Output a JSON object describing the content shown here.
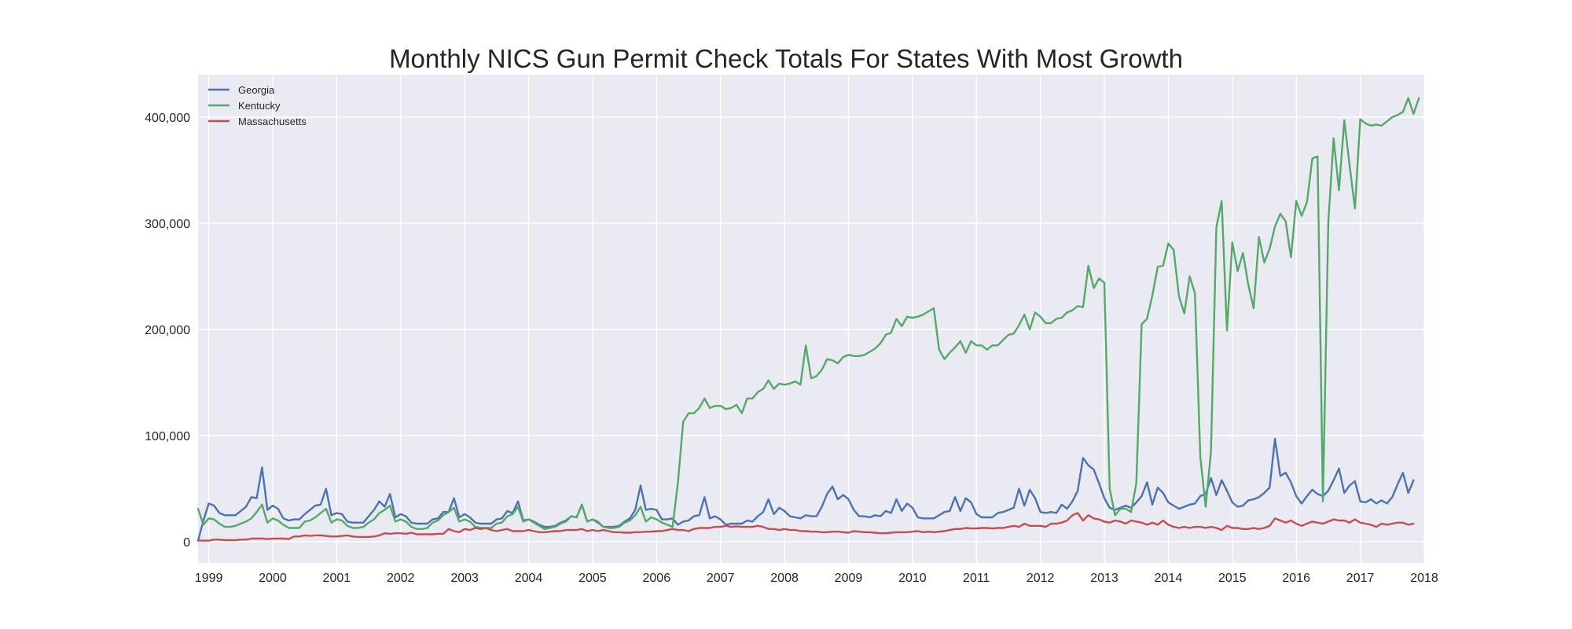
{
  "chart_data": {
    "type": "line",
    "title": "Monthly NICS Gun Permit Check Totals For States With Most Growth",
    "xlabel": "",
    "ylabel": "",
    "x_start": "1998-11",
    "x_end": "2018-01",
    "x_range": [
      "1998-11",
      "2018-01"
    ],
    "x_ticks": [
      "1999",
      "2000",
      "2001",
      "2002",
      "2003",
      "2004",
      "2005",
      "2006",
      "2007",
      "2008",
      "2009",
      "2010",
      "2011",
      "2012",
      "2013",
      "2014",
      "2015",
      "2016",
      "2017",
      "2018"
    ],
    "ylim": [
      -20000,
      440000
    ],
    "y_ticks": [
      0,
      100000,
      200000,
      300000,
      400000
    ],
    "y_tick_labels": [
      "0",
      "100,000",
      "200,000",
      "300,000",
      "400,000"
    ],
    "grid": true,
    "background": "#eaeaf2",
    "legend_position": "top-left",
    "series": [
      {
        "name": "Georgia",
        "color": "#4c72b0",
        "values": [
          1000,
          20000,
          36000,
          34000,
          27000,
          25000,
          25000,
          25000,
          29000,
          33000,
          42000,
          41000,
          70000,
          30000,
          34000,
          31000,
          22000,
          20000,
          21000,
          21000,
          26000,
          30000,
          34000,
          35000,
          50000,
          25000,
          27000,
          26000,
          19000,
          18000,
          18000,
          18000,
          24000,
          30000,
          38000,
          33000,
          45000,
          23000,
          26000,
          24000,
          18000,
          17000,
          17000,
          17000,
          21000,
          22000,
          28000,
          28000,
          41000,
          23000,
          26000,
          23000,
          18000,
          17000,
          17000,
          17000,
          21000,
          22000,
          29000,
          27000,
          38000,
          20000,
          21000,
          19000,
          16000,
          14000,
          14000,
          15000,
          18000,
          20000,
          24000,
          23000,
          35000,
          19000,
          21000,
          18000,
          14000,
          14000,
          14000,
          15000,
          19000,
          22000,
          30000,
          53000,
          30000,
          31000,
          30000,
          21000,
          21000,
          22000,
          16000,
          19000,
          20000,
          24000,
          25000,
          42000,
          22000,
          24000,
          21000,
          16000,
          17000,
          17000,
          17000,
          20000,
          19000,
          24000,
          28000,
          40000,
          26000,
          32000,
          29000,
          24000,
          23000,
          22000,
          25000,
          24000,
          24000,
          33000,
          45000,
          52000,
          40000,
          44000,
          40000,
          30000,
          24000,
          24000,
          23000,
          25000,
          24000,
          29000,
          27000,
          40000,
          29000,
          36000,
          32000,
          23000,
          22000,
          22000,
          22000,
          25000,
          28000,
          29000,
          42000,
          29000,
          41000,
          37000,
          26000,
          23000,
          23000,
          23000,
          27000,
          28000,
          30000,
          32000,
          50000,
          34000,
          49000,
          41000,
          28000,
          27000,
          28000,
          27000,
          35000,
          31000,
          38000,
          48000,
          79000,
          72000,
          68000,
          55000,
          41000,
          32000,
          30000,
          32000,
          34000,
          32000,
          37000,
          43000,
          56000,
          35000,
          51000,
          46000,
          37000,
          34000,
          31000,
          33000,
          35000,
          36000,
          43000,
          45000,
          60000,
          44000,
          58000,
          48000,
          37000,
          33000,
          34000,
          39000,
          40000,
          42000,
          46000,
          51000,
          97000,
          62000,
          65000,
          56000,
          43000,
          36000,
          43000,
          49000,
          45000,
          43000,
          48000,
          58000,
          69000,
          46000,
          53000,
          57000,
          38000,
          37000,
          40000,
          36000,
          39000,
          36000,
          42000,
          54000,
          65000,
          46000,
          58000
        ]
      },
      {
        "name": "Kentucky",
        "color": "#55a868",
        "values": [
          31000,
          16000,
          22000,
          21000,
          17000,
          14000,
          14000,
          15000,
          17000,
          19000,
          22000,
          28000,
          35000,
          18000,
          22000,
          20000,
          16000,
          13000,
          13000,
          13000,
          19000,
          20000,
          23000,
          27000,
          31000,
          18000,
          21000,
          20000,
          15000,
          13000,
          13000,
          14000,
          18000,
          21000,
          27000,
          30000,
          34000,
          19000,
          21000,
          19000,
          14000,
          12000,
          12000,
          13000,
          18000,
          20000,
          25000,
          28000,
          32000,
          19000,
          21000,
          19000,
          14000,
          13000,
          13000,
          13000,
          17000,
          18000,
          24000,
          26000,
          33000,
          19000,
          21000,
          18000,
          15000,
          12000,
          13000,
          14000,
          17000,
          19000,
          24000,
          23000,
          35000,
          19000,
          21000,
          19000,
          14000,
          13000,
          13000,
          14000,
          18000,
          20000,
          25000,
          33000,
          19000,
          23000,
          21000,
          18000,
          16000,
          14000,
          55000,
          113000,
          121000,
          121000,
          126000,
          135000,
          126000,
          128000,
          128000,
          125000,
          126000,
          129000,
          121000,
          135000,
          135000,
          141000,
          144000,
          152000,
          144000,
          149000,
          148000,
          149000,
          151000,
          148000,
          185000,
          154000,
          156000,
          162000,
          172000,
          171000,
          168000,
          174000,
          176000,
          175000,
          175000,
          176000,
          179000,
          182000,
          187000,
          195000,
          197000,
          210000,
          203000,
          212000,
          211000,
          212000,
          214000,
          217000,
          220000,
          181000,
          172000,
          178000,
          183000,
          189000,
          178000,
          189000,
          185000,
          185000,
          181000,
          185000,
          185000,
          190000,
          195000,
          196000,
          204000,
          214000,
          200000,
          216000,
          212000,
          206000,
          206000,
          210000,
          211000,
          216000,
          218000,
          222000,
          221000,
          260000,
          239000,
          248000,
          244000,
          50000,
          25000,
          31000,
          31000,
          28000,
          55000,
          205000,
          210000,
          232000,
          259000,
          260000,
          281000,
          275000,
          231000,
          215000,
          250000,
          234000,
          80000,
          33000,
          85000,
          296000,
          321000,
          199000,
          282000,
          255000,
          272000,
          242000,
          220000,
          287000,
          263000,
          276000,
          297000,
          309000,
          302000,
          268000,
          321000,
          307000,
          320000,
          361000,
          363000,
          38000,
          300000,
          380000,
          331000,
          397000,
          355000,
          314000,
          398000,
          394000,
          392000,
          393000,
          392000,
          396000,
          400000,
          402000,
          405000,
          418000,
          403000,
          418000
        ]
      },
      {
        "name": "Massachusetts",
        "color": "#c44e52",
        "values": [
          1000,
          1000,
          1000,
          2000,
          2000,
          1500,
          1500,
          1500,
          2000,
          2000,
          3000,
          3000,
          3000,
          2500,
          3000,
          3000,
          3000,
          2500,
          5000,
          5000,
          6000,
          5500,
          6000,
          6000,
          5500,
          5000,
          5000,
          5500,
          6000,
          5000,
          4500,
          4500,
          4500,
          5000,
          6000,
          8000,
          7500,
          8000,
          8000,
          7500,
          8500,
          7000,
          7000,
          7000,
          7000,
          7500,
          7500,
          12000,
          10000,
          9000,
          12000,
          11000,
          13000,
          12000,
          13000,
          11000,
          10000,
          11000,
          12000,
          10000,
          10000,
          10000,
          11000,
          10000,
          9000,
          9000,
          9500,
          10000,
          10000,
          11000,
          11000,
          11000,
          12000,
          10000,
          11000,
          10000,
          11000,
          10000,
          9000,
          9000,
          8500,
          8500,
          9000,
          9000,
          9500,
          9500,
          10000,
          10000,
          11000,
          12000,
          11000,
          11000,
          10000,
          12000,
          13000,
          13000,
          13000,
          14000,
          14000,
          15000,
          14000,
          14500,
          14000,
          14000,
          14000,
          15000,
          14000,
          12000,
          12000,
          11000,
          12000,
          11000,
          11000,
          10000,
          10000,
          9500,
          9500,
          9000,
          9000,
          9500,
          9500,
          9000,
          8500,
          10000,
          9500,
          9000,
          9000,
          8500,
          8000,
          8000,
          8500,
          9000,
          9000,
          9000,
          9500,
          10000,
          9000,
          9500,
          9000,
          9500,
          10000,
          11000,
          12000,
          12000,
          13000,
          12500,
          12500,
          13000,
          13000,
          12500,
          13000,
          13000,
          14000,
          15000,
          14000,
          17000,
          15000,
          15000,
          15000,
          14000,
          17000,
          17000,
          18000,
          20000,
          25000,
          27000,
          20000,
          25000,
          22000,
          21000,
          19000,
          18000,
          20000,
          19000,
          17000,
          20000,
          19000,
          18000,
          16000,
          18000,
          16000,
          20000,
          16000,
          14000,
          13000,
          14000,
          13000,
          14000,
          14000,
          13000,
          14000,
          13000,
          11000,
          15000,
          13000,
          13000,
          12000,
          12000,
          13000,
          12000,
          13000,
          15000,
          22000,
          20000,
          18000,
          20000,
          17000,
          15000,
          17000,
          19000,
          18000,
          17000,
          19000,
          21000,
          20000,
          20000,
          18000,
          21000,
          18000,
          17000,
          16000,
          14000,
          17000,
          16000,
          17000,
          18000,
          18000,
          16000,
          17000
        ]
      }
    ]
  }
}
